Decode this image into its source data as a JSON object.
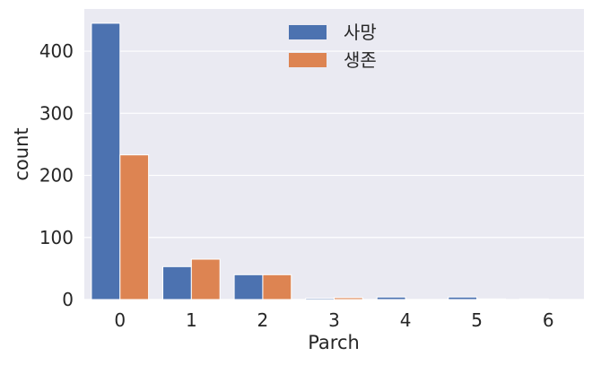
{
  "chart_data": {
    "type": "bar",
    "xlabel": "Parch",
    "ylabel": "count",
    "categories": [
      "0",
      "1",
      "2",
      "3",
      "4",
      "5",
      "6"
    ],
    "series": [
      {
        "name": "사망",
        "color": "#4c72b0",
        "values": [
          445,
          53,
          40,
          2,
          4,
          4,
          1
        ]
      },
      {
        "name": "생존",
        "color": "#dd8452",
        "values": [
          233,
          65,
          40,
          3,
          0,
          1,
          0
        ]
      }
    ],
    "yticks": [
      0,
      100,
      200,
      300,
      400
    ],
    "ylim": [
      0,
      468
    ],
    "grid": true,
    "legend_position": "top-center",
    "background": "#eaeaf2"
  }
}
